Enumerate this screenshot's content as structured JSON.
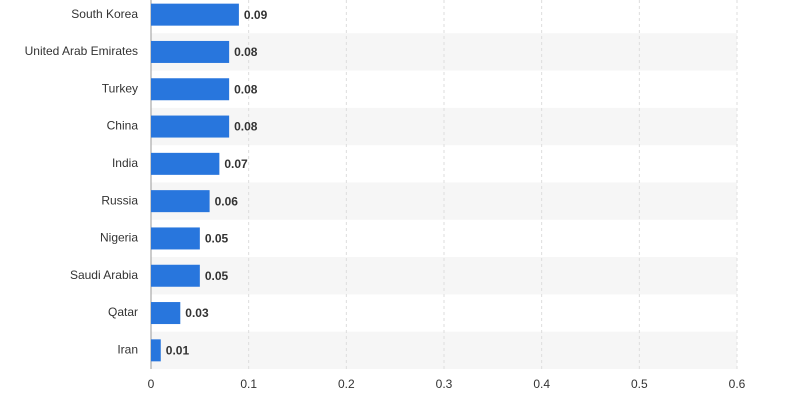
{
  "chart_data": {
    "type": "bar",
    "orientation": "horizontal",
    "categories": [
      "South Korea",
      "United Arab Emirates",
      "Turkey",
      "China",
      "India",
      "Russia",
      "Nigeria",
      "Saudi Arabia",
      "Qatar",
      "Iran"
    ],
    "values": [
      0.09,
      0.08,
      0.08,
      0.08,
      0.07,
      0.06,
      0.05,
      0.05,
      0.03,
      0.01
    ],
    "color": "#2876dd",
    "xlim": [
      0,
      0.6
    ],
    "xticks": [
      0,
      0.1,
      0.2,
      0.3,
      0.4,
      0.5,
      0.6
    ],
    "grid": true
  }
}
